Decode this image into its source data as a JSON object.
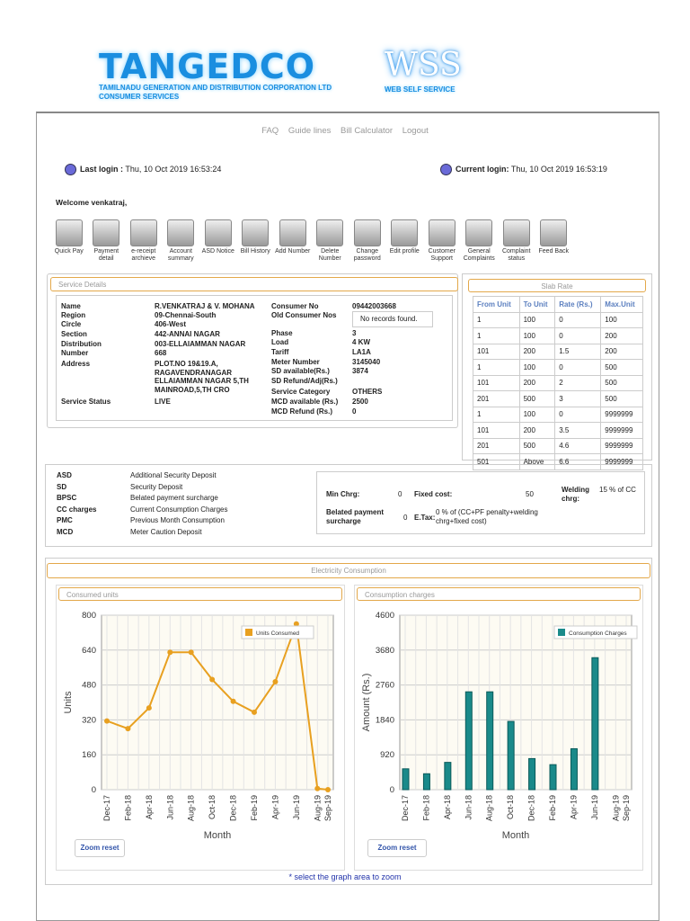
{
  "brand": {
    "name": "TANGEDCO",
    "sub": "TAMILNADU GENERATION AND DISTRIBUTION CORPORATION LTD CONSUMER SERVICES",
    "wss": "WSS",
    "wss_sub": "WEB SELF SERVICE"
  },
  "nav": [
    "FAQ",
    "Guide lines",
    "Bill Calculator",
    "Logout"
  ],
  "last_login": {
    "label": "Last login :",
    "value": "Thu, 10 Oct 2019 16:53:24"
  },
  "current_login": {
    "label": "Current login:",
    "value": "Thu, 10 Oct 2019 16:53:19"
  },
  "welcome": "Welcome venkatraj,",
  "icons": [
    [
      "Quick Pay",
      "cash-icon"
    ],
    [
      "Payment detail",
      "payment-icon"
    ],
    [
      "e-receipt archieve",
      "archive-icon"
    ],
    [
      "Account summary",
      "document-icon"
    ],
    [
      "ASD Notice",
      "notice-icon"
    ],
    [
      "Bill History",
      "calculator-icon"
    ],
    [
      "Add Number",
      "add-user-icon"
    ],
    [
      "Delete Number",
      "delete-icon"
    ],
    [
      "Change password",
      "pencil-icon"
    ],
    [
      "Edit profile",
      "profile-icon"
    ],
    [
      "Customer Support",
      "support-icon"
    ],
    [
      "General Complaints",
      "checklist-icon"
    ],
    [
      "Complaint status",
      "status-icon"
    ],
    [
      "Feed Back",
      "mail-icon"
    ]
  ],
  "service": {
    "title": "Service Details",
    "left": [
      [
        "Name",
        "R.VENKATRAJ & V. MOHANA"
      ],
      [
        "Region",
        "09-Chennai-South"
      ],
      [
        "Circle",
        "406-West"
      ],
      [
        "Section",
        "442-ANNAI NAGAR"
      ],
      [
        "Distribution",
        "003-ELLAIAMMAN NAGAR"
      ],
      [
        "Number",
        "668"
      ],
      [
        "Address",
        "PLOT.NO 19&19.A, RAGAVENDRANAGAR ELLAIAMMAN NAGAR 5,TH MAINROAD,5,TH CRO"
      ]
    ],
    "status_label": "Service Status",
    "status_value": "LIVE",
    "consumer_no_label": "Consumer No",
    "consumer_no": "09442003668",
    "old_label": "Old Consumer Nos",
    "old_value": "No records found.",
    "right": [
      [
        "Phase",
        "3"
      ],
      [
        "Load",
        "4 KW"
      ],
      [
        "Tariff",
        "LA1A"
      ],
      [
        "Meter Number",
        "3145040"
      ],
      [
        "SD available(Rs.)",
        "3874"
      ],
      [
        "SD Refund/Adj(Rs.)",
        ""
      ],
      [
        "Service Category",
        "OTHERS"
      ],
      [
        "MCD available (Rs.)",
        "2500"
      ],
      [
        "MCD Refund (Rs.)",
        "0"
      ]
    ]
  },
  "slab": {
    "title": "Slab Rate",
    "headers": [
      "From Unit",
      "To Unit",
      "Rate (Rs.)",
      "Max.Unit"
    ],
    "rows": [
      [
        "1",
        "100",
        "0",
        "100"
      ],
      [
        "1",
        "100",
        "0",
        "200"
      ],
      [
        "101",
        "200",
        "1.5",
        "200"
      ],
      [
        "1",
        "100",
        "0",
        "500"
      ],
      [
        "101",
        "200",
        "2",
        "500"
      ],
      [
        "201",
        "500",
        "3",
        "500"
      ],
      [
        "1",
        "100",
        "0",
        "9999999"
      ],
      [
        "101",
        "200",
        "3.5",
        "9999999"
      ],
      [
        "201",
        "500",
        "4.6",
        "9999999"
      ],
      [
        "501",
        "Above",
        "6.6",
        "9999999"
      ]
    ]
  },
  "abbr": [
    [
      "ASD",
      "Additional Security Deposit"
    ],
    [
      "SD",
      "Security Deposit"
    ],
    [
      "BPSC",
      "Belated payment surcharge"
    ],
    [
      "CC charges",
      "Current Consumption Charges"
    ],
    [
      "PMC",
      "Previous Month Consumption"
    ],
    [
      "MCD",
      "Meter Caution Deposit"
    ]
  ],
  "fees": {
    "min_label": "Min Chrg:",
    "min": "0",
    "fixed_label": "Fixed cost:",
    "fixed": "50",
    "weld_label": "Welding chrg:",
    "weld": "15 % of CC",
    "bps_label": "Belated payment surcharge",
    "bps": "0",
    "etax_label": "E.Tax:",
    "etax": "0 % of (CC+PF penalty+welding chrg+fixed cost)"
  },
  "ec": {
    "title": "Electricity Consumption",
    "zoom": "Zoom reset",
    "hint": "* select the graph area to zoom"
  },
  "chart_data": [
    {
      "type": "line",
      "title": "Consumed units",
      "ylabel": "Units",
      "xlabel": "Month",
      "ylim": [
        0,
        800
      ],
      "yticks": [
        0,
        160,
        320,
        480,
        640,
        800
      ],
      "legend": "Units Consumed",
      "color": "#e8a020",
      "categories": [
        "Dec-17",
        "Jan-18",
        "Feb-18",
        "Mar-18",
        "Apr-18",
        "May-18",
        "Jun-18",
        "Jul-18",
        "Aug-18",
        "Sep-18",
        "Oct-18",
        "Nov-18",
        "Dec-18",
        "Jan-19",
        "Feb-19",
        "Mar-19",
        "Apr-19",
        "May-19",
        "Jun-19",
        "Jul-19",
        "Aug-19",
        "Sep-19"
      ],
      "tick_labels": [
        "Dec-17",
        "Feb-18",
        "Apr-18",
        "Jun-18",
        "Aug-18",
        "Oct-18",
        "Dec-18",
        "Feb-19",
        "Apr-19",
        "Jun-19",
        "Aug-19",
        "Sep-19"
      ],
      "x": [
        0,
        2,
        4,
        6,
        8,
        10,
        12,
        14,
        16,
        18,
        20,
        21
      ],
      "values": [
        315,
        280,
        375,
        630,
        630,
        505,
        405,
        355,
        495,
        760,
        5,
        0
      ]
    },
    {
      "type": "bar",
      "title": "Consumption charges",
      "ylabel": "Amount (Rs.)",
      "xlabel": "Month",
      "ylim": [
        0,
        4600
      ],
      "yticks": [
        0,
        920,
        1840,
        2760,
        3680,
        4600
      ],
      "legend": "Consumption Charges",
      "color": "#1a8a8a",
      "tick_labels": [
        "Dec-17",
        "Feb-18",
        "Apr-18",
        "Jun-18",
        "Aug-18",
        "Oct-18",
        "Dec-18",
        "Feb-19",
        "Apr-19",
        "Jun-19",
        "Aug-19",
        "Sep-19"
      ],
      "x": [
        0,
        2,
        4,
        6,
        8,
        10,
        12,
        14,
        16,
        18,
        20,
        21
      ],
      "values": [
        550,
        420,
        720,
        2580,
        2580,
        1800,
        820,
        660,
        1080,
        3480,
        0,
        0
      ]
    }
  ]
}
